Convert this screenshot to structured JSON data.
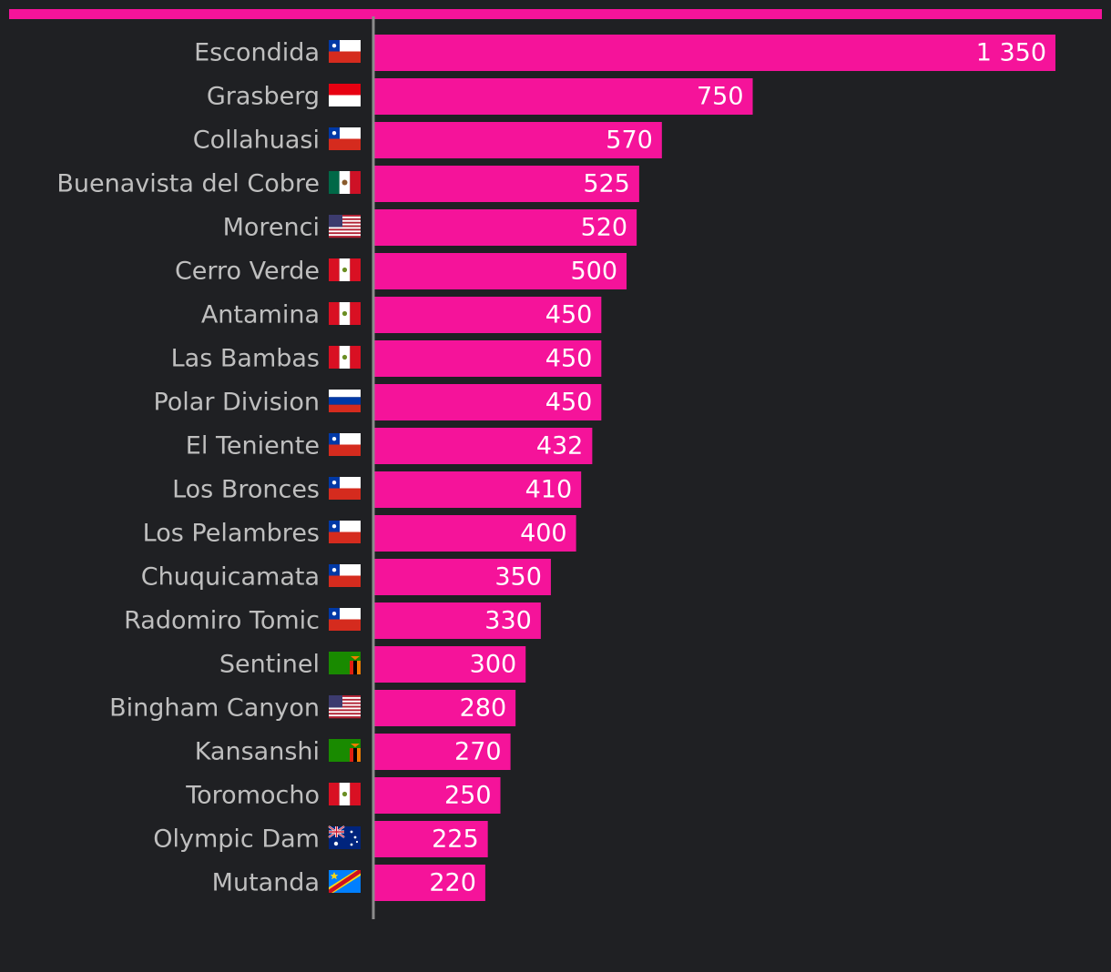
{
  "colors": {
    "background": "#1f2023",
    "bar": "#f5139a",
    "axis": "#8c8c8c",
    "label": "#bfbfbf",
    "value": "#ffffff"
  },
  "chart_data": {
    "type": "bar",
    "orientation": "horizontal",
    "title": "",
    "xlabel": "",
    "ylabel": "",
    "grid": false,
    "legend": "none",
    "xlim": [
      0,
      1450
    ],
    "categories": [
      "Escondida",
      "Grasberg",
      "Collahuasi",
      "Buenavista del Cobre",
      "Morenci",
      "Cerro Verde",
      "Antamina",
      "Las Bambas",
      "Polar Division",
      "El Teniente",
      "Los Bronces",
      "Los Pelambres",
      "Chuquicamata",
      "Radomiro Tomic",
      "Sentinel",
      "Bingham Canyon",
      "Kansanshi",
      "Toromocho",
      "Olympic Dam",
      "Mutanda"
    ],
    "flags": [
      "chile-flag-icon",
      "indonesia-flag-icon",
      "chile-flag-icon",
      "mexico-flag-icon",
      "usa-flag-icon",
      "peru-flag-icon",
      "peru-flag-icon",
      "peru-flag-icon",
      "russia-flag-icon",
      "chile-flag-icon",
      "chile-flag-icon",
      "chile-flag-icon",
      "chile-flag-icon",
      "chile-flag-icon",
      "zambia-flag-icon",
      "usa-flag-icon",
      "zambia-flag-icon",
      "peru-flag-icon",
      "australia-flag-icon",
      "drc-flag-icon"
    ],
    "values": [
      1350,
      750,
      570,
      525,
      520,
      500,
      450,
      450,
      450,
      432,
      410,
      400,
      350,
      330,
      300,
      280,
      270,
      250,
      225,
      220
    ],
    "value_labels": [
      "1 350",
      "750",
      "570",
      "525",
      "520",
      "500",
      "450",
      "450",
      "450",
      "432",
      "410",
      "400",
      "350",
      "330",
      "300",
      "280",
      "270",
      "250",
      "225",
      "220"
    ]
  }
}
